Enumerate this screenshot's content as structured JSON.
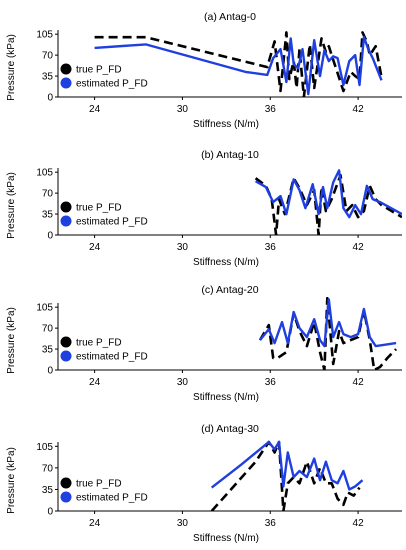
{
  "colors": {
    "true_series": "#000000",
    "estimated_series": "#1f3fe0",
    "axes": "#000000"
  },
  "chart_data": [
    {
      "type": "line",
      "title": "(a) Antag-0",
      "xlabel": "Stiffness (N/m)",
      "ylabel": "Pressure (kPa)",
      "xlim": [
        21.5,
        45
      ],
      "ylim": [
        0,
        112
      ],
      "xticks": [
        24,
        30,
        36,
        42
      ],
      "xtick_labels": [
        "24",
        "30",
        "36",
        "42"
      ],
      "yticks": [
        0,
        35,
        70,
        105
      ],
      "ytick_labels": [
        "0",
        "35",
        "70",
        "105"
      ],
      "legend": {
        "position": "left",
        "entries": [
          "true P_FD",
          "estimated P_FD"
        ]
      },
      "series": [
        {
          "name": "true P_FD",
          "style": "dashed",
          "color": "#000000",
          "x": [
            24,
            27.5,
            35.8,
            36.3,
            36.7,
            37.1,
            37.3,
            37.6,
            37.8,
            38.0,
            38.3,
            38.7,
            39.0,
            39.5,
            39.8,
            40.0,
            40.3,
            40.6,
            41.0,
            41.5,
            41.8,
            42.1,
            42.3,
            42.6,
            42.8,
            43.2,
            43.6
          ],
          "y": [
            100,
            100,
            50,
            93,
            10,
            108,
            30,
            60,
            15,
            80,
            0,
            88,
            15,
            98,
            75,
            85,
            62,
            40,
            10,
            42,
            35,
            30,
            108,
            92,
            70,
            85,
            33
          ]
        },
        {
          "name": "estimated P_FD",
          "style": "solid",
          "color": "#1f3fe0",
          "x": [
            24,
            27.5,
            34.3,
            35.8,
            36.2,
            36.7,
            37.1,
            37.4,
            37.6,
            37.9,
            38.2,
            38.6,
            39.0,
            39.4,
            39.7,
            40.0,
            40.3,
            40.6,
            41.0,
            41.4,
            41.8,
            42.1,
            42.4,
            42.7,
            43.0,
            43.6
          ],
          "y": [
            82,
            88,
            42,
            37,
            65,
            80,
            25,
            98,
            55,
            48,
            80,
            5,
            95,
            35,
            78,
            60,
            68,
            65,
            20,
            60,
            70,
            20,
            100,
            80,
            65,
            28
          ]
        }
      ]
    },
    {
      "type": "line",
      "title": "(b) Antag-10",
      "xlabel": "Stiffness (N/m)",
      "ylabel": "Pressure (kPa)",
      "xlim": [
        21.5,
        45
      ],
      "ylim": [
        0,
        112
      ],
      "xticks": [
        24,
        30,
        36,
        42
      ],
      "xtick_labels": [
        "24",
        "30",
        "36",
        "42"
      ],
      "yticks": [
        0,
        35,
        70,
        105
      ],
      "ytick_labels": [
        "0",
        "35",
        "70",
        "105"
      ],
      "legend": {
        "position": "left",
        "entries": [
          "true P_FD",
          "estimated P_FD"
        ]
      },
      "series": [
        {
          "name": "true P_FD",
          "style": "dashed",
          "color": "#000000",
          "x": [
            35.0,
            35.7,
            36.1,
            36.4,
            36.6,
            37.0,
            37.6,
            38.0,
            38.5,
            39.0,
            39.3,
            39.5,
            39.8,
            40.2,
            40.8,
            41.2,
            41.6,
            42.0,
            42.4,
            42.8,
            43.2,
            43.6,
            45.0
          ],
          "y": [
            95,
            82,
            60,
            0,
            60,
            35,
            95,
            78,
            50,
            75,
            0,
            80,
            40,
            60,
            100,
            40,
            50,
            30,
            40,
            82,
            60,
            50,
            30
          ]
        },
        {
          "name": "estimated P_FD",
          "style": "solid",
          "color": "#1f3fe0",
          "x": [
            35.0,
            35.7,
            36.2,
            36.7,
            37.1,
            37.6,
            38.0,
            38.4,
            38.9,
            39.3,
            39.6,
            39.9,
            40.3,
            40.7,
            41.0,
            41.4,
            41.8,
            42.2,
            42.6,
            43.0,
            43.5,
            45.0
          ],
          "y": [
            90,
            80,
            55,
            65,
            35,
            93,
            75,
            45,
            85,
            35,
            80,
            45,
            88,
            108,
            45,
            30,
            50,
            35,
            82,
            60,
            55,
            35
          ]
        }
      ]
    },
    {
      "type": "line",
      "title": "(c) Antag-20",
      "xlabel": "Stiffness (N/m)",
      "ylabel": "Pressure (kPa)",
      "xlim": [
        21.5,
        45
      ],
      "ylim": [
        0,
        112
      ],
      "xticks": [
        24,
        30,
        36,
        42
      ],
      "xtick_labels": [
        "24",
        "30",
        "36",
        "42"
      ],
      "yticks": [
        0,
        35,
        70,
        105
      ],
      "ytick_labels": [
        "0",
        "35",
        "70",
        "105"
      ],
      "legend": {
        "position": "left",
        "entries": [
          "true P_FD",
          "estimated P_FD"
        ]
      },
      "series": [
        {
          "name": "true P_FD",
          "style": "dashed",
          "color": "#000000",
          "x": [
            35.3,
            35.9,
            36.2,
            36.5,
            37.1,
            37.6,
            38.0,
            38.5,
            39.0,
            39.4,
            39.7,
            39.9,
            40.3,
            40.7,
            41.0,
            41.5,
            42.0,
            42.4,
            42.8,
            43.1,
            43.5,
            44.0,
            44.6
          ],
          "y": [
            50,
            75,
            20,
            20,
            30,
            95,
            65,
            40,
            80,
            30,
            0,
            120,
            10,
            65,
            45,
            50,
            55,
            100,
            50,
            0,
            5,
            20,
            35
          ]
        },
        {
          "name": "estimated P_FD",
          "style": "solid",
          "color": "#1f3fe0",
          "x": [
            35.3,
            35.9,
            36.3,
            36.8,
            37.2,
            37.6,
            38.0,
            38.5,
            39.0,
            39.4,
            39.7,
            40.0,
            40.3,
            40.7,
            41.0,
            41.5,
            42.0,
            42.4,
            42.8,
            43.2,
            44.6
          ],
          "y": [
            50,
            68,
            45,
            80,
            45,
            97,
            70,
            55,
            85,
            50,
            40,
            118,
            55,
            80,
            60,
            55,
            60,
            102,
            55,
            40,
            45
          ]
        }
      ]
    },
    {
      "type": "line",
      "title": "(d) Antag-30",
      "xlabel": "Stiffness (N/m)",
      "ylabel": "Pressure (kPa)",
      "xlim": [
        21.5,
        45
      ],
      "ylim": [
        0,
        112
      ],
      "xticks": [
        24,
        30,
        36,
        42
      ],
      "xtick_labels": [
        "24",
        "30",
        "36",
        "42"
      ],
      "yticks": [
        0,
        35,
        70,
        105
      ],
      "ytick_labels": [
        "0",
        "35",
        "70",
        "105"
      ],
      "legend": {
        "position": "left",
        "entries": [
          "true P_FD",
          "estimated P_FD"
        ]
      },
      "series": [
        {
          "name": "true P_FD",
          "style": "dashed",
          "color": "#000000",
          "x": [
            32.0,
            33.5,
            35.0,
            35.9,
            36.3,
            36.6,
            36.9,
            37.2,
            37.6,
            38.0,
            38.5,
            39.0,
            39.4,
            39.8,
            40.2,
            40.6,
            41.0,
            41.3,
            41.7,
            42.1
          ],
          "y": [
            0,
            40,
            80,
            112,
            95,
            112,
            0,
            45,
            55,
            45,
            80,
            45,
            70,
            45,
            45,
            20,
            10,
            30,
            25,
            38
          ]
        },
        {
          "name": "estimated P_FD",
          "style": "solid",
          "color": "#1f3fe0",
          "x": [
            32.0,
            34.0,
            35.9,
            36.3,
            36.6,
            36.9,
            37.2,
            37.6,
            38.0,
            38.5,
            39.0,
            39.4,
            39.8,
            40.2,
            40.6,
            41.0,
            41.4,
            41.8,
            42.3
          ],
          "y": [
            38,
            75,
            112,
            100,
            112,
            40,
            95,
            55,
            65,
            55,
            85,
            50,
            80,
            50,
            45,
            65,
            35,
            40,
            50
          ]
        }
      ]
    }
  ]
}
